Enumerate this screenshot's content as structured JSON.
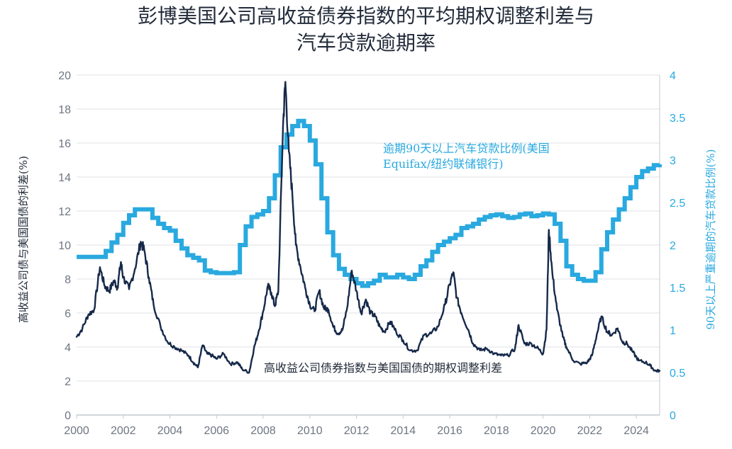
{
  "chart_data": {
    "type": "line",
    "title_lines": [
      "彭博美国公司高收益债券指数的平均期权调整利差与",
      "汽车贷款逾期率"
    ],
    "ylabel_left": "高收益公司债与美国国债的利差(%)",
    "ylabel_right": "90天以上严重逾期的汽车贷款比例(%)",
    "xlim": [
      2000,
      2025
    ],
    "ylim_left": [
      0,
      20
    ],
    "ylim_right": [
      0,
      4
    ],
    "x_ticks": [
      2000,
      2002,
      2004,
      2006,
      2008,
      2010,
      2012,
      2014,
      2016,
      2018,
      2020,
      2022,
      2024
    ],
    "y_ticks_left": [
      0,
      2,
      4,
      6,
      8,
      10,
      12,
      14,
      16,
      18,
      20
    ],
    "y_ticks_right": [
      0,
      0.5,
      1,
      1.5,
      2,
      2.5,
      3,
      3.5,
      4
    ],
    "y_tick_labels_right": [
      "0",
      "0.5",
      "1",
      "1.5",
      "2",
      "2.5",
      "3",
      "3.5",
      "4"
    ],
    "grid": true,
    "colors": {
      "spread": "#16294a",
      "delinquency": "#29a9df"
    },
    "annotations": {
      "delinquency_label_lines": [
        "逾期90天以上汽车贷款比例(美国",
        "Equifax/纽约联储银行)"
      ],
      "spread_label": "高收益公司债券指数与美国国债的期权调整利差"
    },
    "series": [
      {
        "axis": "left",
        "points": [
          [
            2000.0,
            4.6
          ],
          [
            2000.25,
            5.1
          ],
          [
            2000.5,
            5.9
          ],
          [
            2000.75,
            6.2
          ],
          [
            2001.0,
            8.7
          ],
          [
            2001.2,
            7.6
          ],
          [
            2001.4,
            7.3
          ],
          [
            2001.6,
            7.9
          ],
          [
            2001.75,
            7.5
          ],
          [
            2001.9,
            9.0
          ],
          [
            2002.0,
            8.1
          ],
          [
            2002.25,
            7.4
          ],
          [
            2002.5,
            8.6
          ],
          [
            2002.75,
            10.2
          ],
          [
            2002.9,
            9.7
          ],
          [
            2003.1,
            8.1
          ],
          [
            2003.3,
            6.5
          ],
          [
            2003.6,
            5.2
          ],
          [
            2003.9,
            4.3
          ],
          [
            2004.2,
            4.0
          ],
          [
            2004.5,
            3.8
          ],
          [
            2004.8,
            3.5
          ],
          [
            2005.0,
            3.1
          ],
          [
            2005.2,
            2.8
          ],
          [
            2005.4,
            4.1
          ],
          [
            2005.6,
            3.6
          ],
          [
            2005.8,
            3.5
          ],
          [
            2006.0,
            3.3
          ],
          [
            2006.3,
            3.6
          ],
          [
            2006.6,
            3.0
          ],
          [
            2006.9,
            3.1
          ],
          [
            2007.1,
            2.7
          ],
          [
            2007.4,
            2.5
          ],
          [
            2007.6,
            3.9
          ],
          [
            2007.8,
            4.9
          ],
          [
            2008.0,
            6.1
          ],
          [
            2008.2,
            7.6
          ],
          [
            2008.35,
            7.2
          ],
          [
            2008.5,
            6.4
          ],
          [
            2008.65,
            7.3
          ],
          [
            2008.85,
            17.0
          ],
          [
            2008.95,
            19.6
          ],
          [
            2009.1,
            15.5
          ],
          [
            2009.25,
            13.0
          ],
          [
            2009.4,
            10.0
          ],
          [
            2009.6,
            8.7
          ],
          [
            2009.8,
            7.5
          ],
          [
            2010.0,
            6.5
          ],
          [
            2010.2,
            6.1
          ],
          [
            2010.4,
            7.3
          ],
          [
            2010.6,
            6.3
          ],
          [
            2010.8,
            6.2
          ],
          [
            2011.0,
            5.2
          ],
          [
            2011.2,
            4.8
          ],
          [
            2011.4,
            5.0
          ],
          [
            2011.6,
            6.3
          ],
          [
            2011.8,
            8.5
          ],
          [
            2012.0,
            7.3
          ],
          [
            2012.2,
            6.0
          ],
          [
            2012.4,
            6.8
          ],
          [
            2012.6,
            6.0
          ],
          [
            2012.8,
            5.8
          ],
          [
            2013.0,
            5.2
          ],
          [
            2013.2,
            4.9
          ],
          [
            2013.45,
            5.5
          ],
          [
            2013.7,
            4.9
          ],
          [
            2014.0,
            4.4
          ],
          [
            2014.3,
            3.8
          ],
          [
            2014.6,
            3.8
          ],
          [
            2014.9,
            4.7
          ],
          [
            2015.2,
            4.8
          ],
          [
            2015.5,
            5.2
          ],
          [
            2015.8,
            6.5
          ],
          [
            2016.0,
            7.7
          ],
          [
            2016.15,
            8.4
          ],
          [
            2016.3,
            6.9
          ],
          [
            2016.5,
            6.0
          ],
          [
            2016.8,
            5.0
          ],
          [
            2017.0,
            4.2
          ],
          [
            2017.3,
            3.8
          ],
          [
            2017.6,
            3.9
          ],
          [
            2017.9,
            3.6
          ],
          [
            2018.2,
            3.5
          ],
          [
            2018.5,
            3.5
          ],
          [
            2018.8,
            3.9
          ],
          [
            2018.95,
            5.3
          ],
          [
            2019.2,
            4.2
          ],
          [
            2019.5,
            4.2
          ],
          [
            2019.8,
            3.9
          ],
          [
            2020.0,
            3.6
          ],
          [
            2020.15,
            5.0
          ],
          [
            2020.25,
            10.9
          ],
          [
            2020.4,
            8.3
          ],
          [
            2020.6,
            6.2
          ],
          [
            2020.85,
            4.6
          ],
          [
            2021.0,
            4.0
          ],
          [
            2021.3,
            3.2
          ],
          [
            2021.6,
            3.0
          ],
          [
            2021.9,
            3.1
          ],
          [
            2022.1,
            3.5
          ],
          [
            2022.3,
            4.7
          ],
          [
            2022.5,
            5.8
          ],
          [
            2022.75,
            4.9
          ],
          [
            2022.95,
            4.7
          ],
          [
            2023.2,
            5.1
          ],
          [
            2023.4,
            4.3
          ],
          [
            2023.6,
            4.2
          ],
          [
            2023.85,
            3.7
          ],
          [
            2024.1,
            3.2
          ],
          [
            2024.4,
            3.1
          ],
          [
            2024.6,
            2.9
          ],
          [
            2024.8,
            2.6
          ],
          [
            2025.0,
            2.6
          ]
        ]
      },
      {
        "axis": "right",
        "points": [
          [
            2000.0,
            1.86
          ],
          [
            2000.9,
            1.86
          ],
          [
            2001.25,
            1.93
          ],
          [
            2001.5,
            2.03
          ],
          [
            2001.75,
            2.12
          ],
          [
            2002.0,
            2.26
          ],
          [
            2002.25,
            2.35
          ],
          [
            2002.5,
            2.42
          ],
          [
            2002.75,
            2.42
          ],
          [
            2003.0,
            2.42
          ],
          [
            2003.25,
            2.32
          ],
          [
            2003.5,
            2.25
          ],
          [
            2003.75,
            2.2
          ],
          [
            2004.0,
            2.17
          ],
          [
            2004.25,
            2.05
          ],
          [
            2004.5,
            1.96
          ],
          [
            2004.75,
            1.88
          ],
          [
            2005.0,
            1.85
          ],
          [
            2005.25,
            1.82
          ],
          [
            2005.5,
            1.7
          ],
          [
            2005.75,
            1.68
          ],
          [
            2006.0,
            1.67
          ],
          [
            2006.25,
            1.67
          ],
          [
            2006.5,
            1.67
          ],
          [
            2006.75,
            1.68
          ],
          [
            2007.0,
            2.0
          ],
          [
            2007.25,
            2.22
          ],
          [
            2007.5,
            2.33
          ],
          [
            2007.75,
            2.36
          ],
          [
            2008.0,
            2.4
          ],
          [
            2008.25,
            2.55
          ],
          [
            2008.5,
            2.82
          ],
          [
            2008.75,
            3.15
          ],
          [
            2009.0,
            3.3
          ],
          [
            2009.25,
            3.4
          ],
          [
            2009.5,
            3.46
          ],
          [
            2009.75,
            3.4
          ],
          [
            2010.0,
            3.23
          ],
          [
            2010.25,
            2.95
          ],
          [
            2010.5,
            2.55
          ],
          [
            2010.75,
            2.15
          ],
          [
            2011.0,
            1.88
          ],
          [
            2011.25,
            1.72
          ],
          [
            2011.5,
            1.65
          ],
          [
            2011.75,
            1.6
          ],
          [
            2012.0,
            1.55
          ],
          [
            2012.25,
            1.52
          ],
          [
            2012.5,
            1.55
          ],
          [
            2012.75,
            1.58
          ],
          [
            2013.0,
            1.65
          ],
          [
            2013.25,
            1.62
          ],
          [
            2013.5,
            1.62
          ],
          [
            2013.75,
            1.65
          ],
          [
            2014.0,
            1.62
          ],
          [
            2014.25,
            1.6
          ],
          [
            2014.5,
            1.65
          ],
          [
            2014.75,
            1.75
          ],
          [
            2015.0,
            1.82
          ],
          [
            2015.25,
            1.92
          ],
          [
            2015.5,
            2.0
          ],
          [
            2015.75,
            2.04
          ],
          [
            2016.0,
            2.08
          ],
          [
            2016.25,
            2.12
          ],
          [
            2016.5,
            2.2
          ],
          [
            2016.75,
            2.22
          ],
          [
            2017.0,
            2.25
          ],
          [
            2017.25,
            2.3
          ],
          [
            2017.5,
            2.33
          ],
          [
            2017.75,
            2.35
          ],
          [
            2018.0,
            2.36
          ],
          [
            2018.25,
            2.34
          ],
          [
            2018.5,
            2.32
          ],
          [
            2018.75,
            2.33
          ],
          [
            2019.0,
            2.36
          ],
          [
            2019.25,
            2.37
          ],
          [
            2019.5,
            2.34
          ],
          [
            2019.75,
            2.35
          ],
          [
            2020.0,
            2.37
          ],
          [
            2020.25,
            2.36
          ],
          [
            2020.5,
            2.25
          ],
          [
            2020.75,
            2.05
          ],
          [
            2021.0,
            1.75
          ],
          [
            2021.25,
            1.65
          ],
          [
            2021.5,
            1.6
          ],
          [
            2021.75,
            1.58
          ],
          [
            2022.0,
            1.58
          ],
          [
            2022.25,
            1.68
          ],
          [
            2022.5,
            1.95
          ],
          [
            2022.75,
            2.15
          ],
          [
            2023.0,
            2.3
          ],
          [
            2023.25,
            2.42
          ],
          [
            2023.5,
            2.55
          ],
          [
            2023.75,
            2.68
          ],
          [
            2024.0,
            2.8
          ],
          [
            2024.25,
            2.87
          ],
          [
            2024.5,
            2.9
          ],
          [
            2024.75,
            2.94
          ],
          [
            2025.0,
            2.95
          ]
        ]
      }
    ]
  }
}
